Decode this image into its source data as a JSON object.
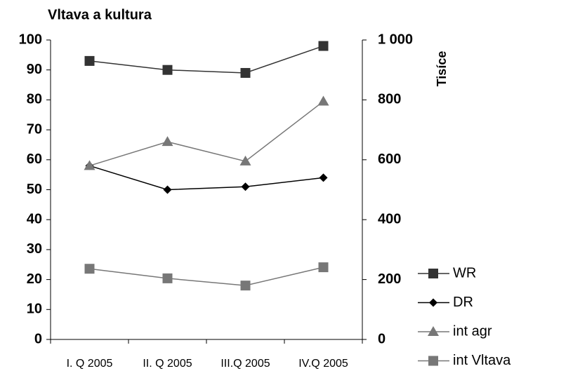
{
  "chart_data": {
    "type": "line",
    "title": "Vltava a kultura",
    "y2_label": "Tisíce",
    "categories": [
      "I. Q 2005",
      "II. Q 2005",
      "III.Q 2005",
      "IV.Q 2005"
    ],
    "series": [
      {
        "name": "WR",
        "color": "#333333",
        "marker": "square",
        "values": [
          93,
          90,
          89,
          98
        ]
      },
      {
        "name": "DR",
        "color": "#000000",
        "marker": "diamond",
        "values": [
          58,
          50,
          51,
          54
        ]
      },
      {
        "name": "int agr",
        "color": "#777777",
        "marker": "triangle",
        "axis": "y2",
        "values": [
          580,
          660,
          595,
          795
        ]
      },
      {
        "name": "int Vltava",
        "color": "#777777",
        "marker": "square",
        "axis": "y2",
        "values": [
          236,
          204,
          180,
          241
        ]
      }
    ],
    "ylim": [
      0,
      100
    ],
    "yticks": [
      0,
      10,
      20,
      30,
      40,
      50,
      60,
      70,
      80,
      90,
      100
    ],
    "y2lim": [
      0,
      1000
    ],
    "y2ticks": [
      0,
      200,
      400,
      600,
      800,
      {
        "value": 1000,
        "label": "1 000"
      }
    ],
    "grid": false,
    "legend": "lower right"
  }
}
